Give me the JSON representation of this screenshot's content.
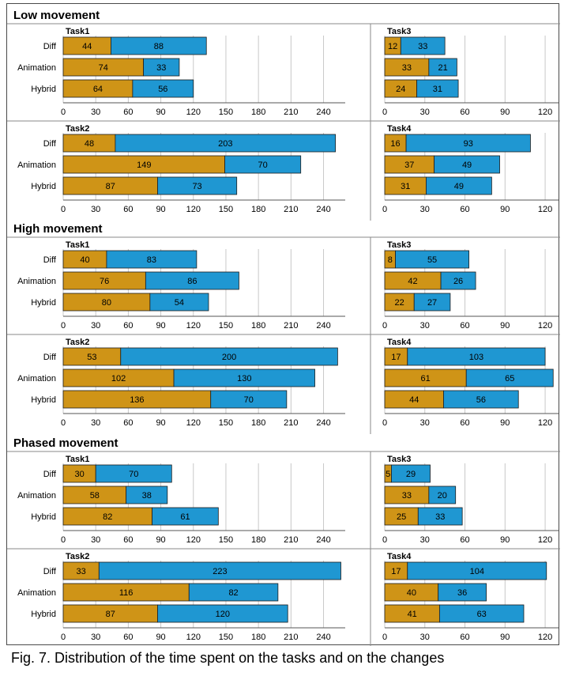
{
  "caption": "Fig. 7. Distribution of the time spent on the tasks and on the changes",
  "colors": {
    "first_segment": "#cf9417",
    "second_segment": "#1f97d2",
    "bar_stroke": "#1d1d1d",
    "grid": "#c8c8c8",
    "divider": "#8a8a8a"
  },
  "sections": [
    {
      "title": "Low movement"
    },
    {
      "title": "High movement"
    },
    {
      "title": "Phased movement"
    }
  ],
  "chart_data": [
    {
      "type": "bar",
      "orientation": "horizontal",
      "stacked": true,
      "title": "Task1",
      "section": "Low movement",
      "categories": [
        "Diff",
        "Animation",
        "Hybrid"
      ],
      "series": [
        {
          "values": [
            44,
            74,
            64
          ]
        },
        {
          "values": [
            88,
            33,
            56
          ]
        }
      ],
      "xlim": [
        0,
        260
      ],
      "xticks": [
        0,
        30,
        60,
        90,
        120,
        150,
        180,
        210,
        240
      ],
      "grid": true
    },
    {
      "type": "bar",
      "orientation": "horizontal",
      "stacked": true,
      "title": "Task3",
      "section": "Low movement",
      "categories": [
        "Diff",
        "Animation",
        "Hybrid"
      ],
      "series": [
        {
          "values": [
            12,
            33,
            24
          ]
        },
        {
          "values": [
            33,
            21,
            31
          ]
        }
      ],
      "xlim": [
        0,
        130
      ],
      "xticks": [
        0,
        30,
        60,
        90,
        120
      ],
      "grid": true
    },
    {
      "type": "bar",
      "orientation": "horizontal",
      "stacked": true,
      "title": "Task2",
      "section": "Low movement",
      "categories": [
        "Diff",
        "Animation",
        "Hybrid"
      ],
      "series": [
        {
          "values": [
            48,
            149,
            87
          ]
        },
        {
          "values": [
            203,
            70,
            73
          ]
        }
      ],
      "xlim": [
        0,
        260
      ],
      "xticks": [
        0,
        30,
        60,
        90,
        120,
        150,
        180,
        210,
        240
      ],
      "grid": true
    },
    {
      "type": "bar",
      "orientation": "horizontal",
      "stacked": true,
      "title": "Task4",
      "section": "Low movement",
      "categories": [
        "Diff",
        "Animation",
        "Hybrid"
      ],
      "series": [
        {
          "values": [
            16,
            37,
            31
          ]
        },
        {
          "values": [
            93,
            49,
            49
          ]
        }
      ],
      "xlim": [
        0,
        130
      ],
      "xticks": [
        0,
        30,
        60,
        90,
        120
      ],
      "grid": true
    },
    {
      "type": "bar",
      "orientation": "horizontal",
      "stacked": true,
      "title": "Task1",
      "section": "High movement",
      "categories": [
        "Diff",
        "Animation",
        "Hybrid"
      ],
      "series": [
        {
          "values": [
            40,
            76,
            80
          ]
        },
        {
          "values": [
            83,
            86,
            54
          ]
        }
      ],
      "xlim": [
        0,
        260
      ],
      "xticks": [
        0,
        30,
        60,
        90,
        120,
        150,
        180,
        210,
        240
      ],
      "grid": true
    },
    {
      "type": "bar",
      "orientation": "horizontal",
      "stacked": true,
      "title": "Task3",
      "section": "High movement",
      "categories": [
        "Diff",
        "Animation",
        "Hybrid"
      ],
      "series": [
        {
          "values": [
            8,
            42,
            22
          ]
        },
        {
          "values": [
            55,
            26,
            27
          ]
        }
      ],
      "xlim": [
        0,
        130
      ],
      "xticks": [
        0,
        30,
        60,
        90,
        120
      ],
      "grid": true
    },
    {
      "type": "bar",
      "orientation": "horizontal",
      "stacked": true,
      "title": "Task2",
      "section": "High movement",
      "categories": [
        "Diff",
        "Animation",
        "Hybrid"
      ],
      "series": [
        {
          "values": [
            53,
            102,
            136
          ]
        },
        {
          "values": [
            200,
            130,
            70
          ]
        }
      ],
      "xlim": [
        0,
        260
      ],
      "xticks": [
        0,
        30,
        60,
        90,
        120,
        150,
        180,
        210,
        240
      ],
      "grid": true
    },
    {
      "type": "bar",
      "orientation": "horizontal",
      "stacked": true,
      "title": "Task4",
      "section": "High movement",
      "categories": [
        "Diff",
        "Animation",
        "Hybrid"
      ],
      "series": [
        {
          "values": [
            17,
            61,
            44
          ]
        },
        {
          "values": [
            103,
            65,
            56
          ]
        }
      ],
      "xlim": [
        0,
        130
      ],
      "xticks": [
        0,
        30,
        60,
        90,
        120
      ],
      "grid": true
    },
    {
      "type": "bar",
      "orientation": "horizontal",
      "stacked": true,
      "title": "Task1",
      "section": "Phased movement",
      "categories": [
        "Diff",
        "Animation",
        "Hybrid"
      ],
      "series": [
        {
          "values": [
            30,
            58,
            82
          ]
        },
        {
          "values": [
            70,
            38,
            61
          ]
        }
      ],
      "xlim": [
        0,
        260
      ],
      "xticks": [
        0,
        30,
        60,
        90,
        120,
        150,
        180,
        210,
        240
      ],
      "grid": true
    },
    {
      "type": "bar",
      "orientation": "horizontal",
      "stacked": true,
      "title": "Task3",
      "section": "Phased movement",
      "categories": [
        "Diff",
        "Animation",
        "Hybrid"
      ],
      "series": [
        {
          "values": [
            5,
            33,
            25
          ]
        },
        {
          "values": [
            29,
            20,
            33
          ]
        }
      ],
      "xlim": [
        0,
        130
      ],
      "xticks": [
        0,
        30,
        60,
        90,
        120
      ],
      "grid": true
    },
    {
      "type": "bar",
      "orientation": "horizontal",
      "stacked": true,
      "title": "Task2",
      "section": "Phased movement",
      "categories": [
        "Diff",
        "Animation",
        "Hybrid"
      ],
      "series": [
        {
          "values": [
            33,
            116,
            87
          ]
        },
        {
          "values": [
            223,
            82,
            120
          ]
        }
      ],
      "xlim": [
        0,
        260
      ],
      "xticks": [
        0,
        30,
        60,
        90,
        120,
        150,
        180,
        210,
        240
      ],
      "grid": true
    },
    {
      "type": "bar",
      "orientation": "horizontal",
      "stacked": true,
      "title": "Task4",
      "section": "Phased movement",
      "categories": [
        "Diff",
        "Animation",
        "Hybrid"
      ],
      "series": [
        {
          "values": [
            17,
            40,
            41
          ]
        },
        {
          "values": [
            104,
            36,
            63
          ]
        }
      ],
      "xlim": [
        0,
        130
      ],
      "xticks": [
        0,
        30,
        60,
        90,
        120
      ],
      "grid": true
    }
  ]
}
